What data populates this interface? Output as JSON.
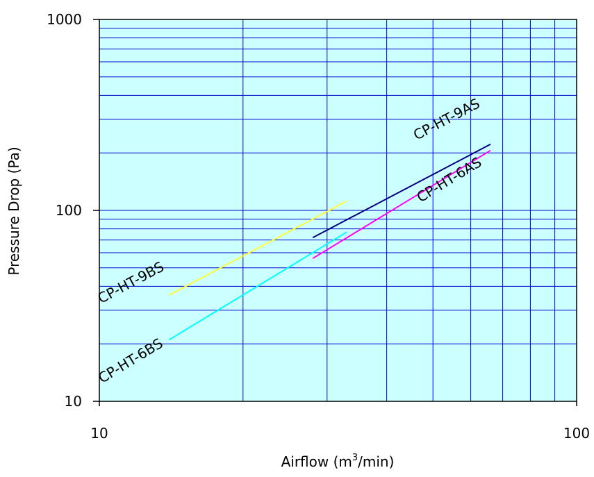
{
  "chart_data": {
    "type": "line",
    "xscale": "log",
    "yscale": "log",
    "xlim": [
      10,
      100
    ],
    "ylim": [
      10,
      1000
    ],
    "xlabel_main": "Airflow (m",
    "xlabel_sup": "3",
    "xlabel_tail": "/min)",
    "ylabel": "Pressure Drop (Pa)",
    "xticks": [
      10,
      100
    ],
    "yticks": [
      10,
      100,
      1000
    ],
    "plot_background": "#ccffff",
    "grid_color": "#0000cc",
    "grid": true,
    "series": [
      {
        "name": "CP-HT-9BS",
        "color": "#ffff33",
        "x": [
          14,
          33
        ],
        "y": [
          36,
          112
        ]
      },
      {
        "name": "CP-HT-6BS",
        "color": "#00ffff",
        "x": [
          14,
          33
        ],
        "y": [
          21,
          77
        ]
      },
      {
        "name": "CP-HT-9AS",
        "color": "#000080",
        "x": [
          28,
          66
        ],
        "y": [
          72,
          222
        ]
      },
      {
        "name": "CP-HT-6AS",
        "color": "#ff00ff",
        "x": [
          28,
          66
        ],
        "y": [
          56,
          206
        ]
      }
    ]
  }
}
